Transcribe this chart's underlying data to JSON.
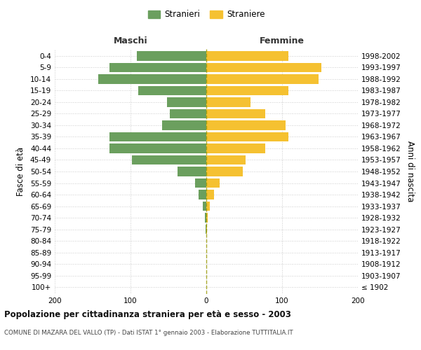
{
  "age_groups": [
    "100+",
    "95-99",
    "90-94",
    "85-89",
    "80-84",
    "75-79",
    "70-74",
    "65-69",
    "60-64",
    "55-59",
    "50-54",
    "45-49",
    "40-44",
    "35-39",
    "30-34",
    "25-29",
    "20-24",
    "15-19",
    "10-14",
    "5-9",
    "0-4"
  ],
  "birth_years": [
    "≤ 1902",
    "1903-1907",
    "1908-1912",
    "1913-1917",
    "1918-1922",
    "1923-1927",
    "1928-1932",
    "1933-1937",
    "1938-1942",
    "1943-1947",
    "1948-1952",
    "1953-1957",
    "1958-1962",
    "1963-1967",
    "1968-1972",
    "1973-1977",
    "1978-1982",
    "1983-1987",
    "1988-1992",
    "1993-1997",
    "1998-2002"
  ],
  "males": [
    0,
    0,
    0,
    0,
    0,
    1,
    2,
    5,
    10,
    15,
    38,
    98,
    128,
    128,
    58,
    48,
    52,
    90,
    143,
    128,
    92
  ],
  "females": [
    0,
    0,
    0,
    0,
    0,
    1,
    2,
    5,
    10,
    18,
    48,
    52,
    78,
    108,
    105,
    78,
    58,
    108,
    148,
    152,
    108
  ],
  "male_color": "#6b9f5e",
  "female_color": "#f5c131",
  "background_color": "#ffffff",
  "grid_color": "#cccccc",
  "center_line_color": "#999900",
  "title": "Popolazione per cittadinanza straniera per età e sesso - 2003",
  "subtitle": "COMUNE DI MAZARA DEL VALLO (TP) - Dati ISTAT 1° gennaio 2003 - Elaborazione TUTTITALIA.IT",
  "label_maschi": "Maschi",
  "label_femmine": "Femmine",
  "ylabel_left": "Fasce di età",
  "ylabel_right": "Anni di nascita",
  "legend_male": "Stranieri",
  "legend_female": "Straniere",
  "xlim": 200
}
